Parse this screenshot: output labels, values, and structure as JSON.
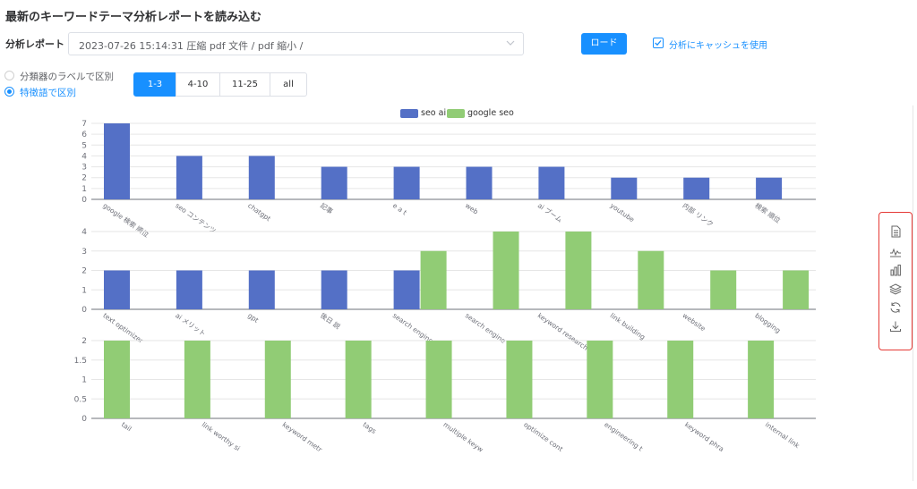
{
  "page": {
    "title": "最新のキーワードテーマ分析レポートを読み込む"
  },
  "report": {
    "label": "分析レポート",
    "selected": "2023-07-26 15:14:31 圧縮 pdf 文件 / pdf 縮小 /"
  },
  "load_button": "ロード",
  "cache": {
    "label": "分析にキャッシュを使用",
    "checked": true
  },
  "radios": [
    {
      "label": "分類器のラベルで区別",
      "checked": false
    },
    {
      "label": "特徴語で区別",
      "checked": true
    }
  ],
  "segments": [
    {
      "label": "1-3",
      "active": true
    },
    {
      "label": "4-10",
      "active": false
    },
    {
      "label": "11-25",
      "active": false
    },
    {
      "label": "all",
      "active": false
    }
  ],
  "toolbox": [
    "document-icon",
    "line-chart-icon",
    "bar-chart-icon",
    "stack-icon",
    "refresh-icon",
    "download-icon"
  ],
  "colors": {
    "accent": "#1890ff",
    "series_blue": "#5470c6",
    "series_green": "#91cc75",
    "toolbox_border": "#e53935"
  },
  "chart_data": [
    {
      "type": "bar",
      "legend": [
        "seo ai",
        "google seo"
      ],
      "categories": [
        "google 検索 順位",
        "seo コンテンツ",
        "chatgpt",
        "記事",
        "e a t",
        "web",
        "ai ブーム",
        "youtube",
        "内部 リンク",
        "検索 順位"
      ],
      "series": [
        {
          "name": "seo ai",
          "values": [
            7,
            4,
            4,
            3,
            3,
            3,
            3,
            2,
            2,
            2
          ]
        },
        {
          "name": "google seo",
          "values": [
            0,
            0,
            0,
            0,
            0,
            0,
            0,
            0,
            0,
            0
          ]
        }
      ],
      "ylim": [
        0,
        7
      ],
      "yticks": [
        0,
        1,
        2,
        3,
        4,
        5,
        6,
        7
      ]
    },
    {
      "type": "bar",
      "categories": [
        "text optimizer",
        "ai メリット",
        "gpt",
        "後日 説",
        "search engine op",
        "search engine",
        "keyword research",
        "link building",
        "website",
        "blogging"
      ],
      "series": [
        {
          "name": "seo ai",
          "values": [
            2,
            2,
            2,
            2,
            2,
            0,
            0,
            0,
            0,
            0
          ]
        },
        {
          "name": "google seo",
          "values": [
            0,
            0,
            0,
            0,
            3,
            4,
            4,
            3,
            2,
            2
          ]
        }
      ],
      "ylim": [
        0,
        4
      ],
      "yticks": [
        0,
        1,
        2,
        3,
        4
      ]
    },
    {
      "type": "bar",
      "categories": [
        "tail",
        "link worthy si",
        "keyword metr",
        "tags",
        "multiple keyw",
        "optimize cont",
        "engineering t",
        "keyword phra",
        "internal link"
      ],
      "series": [
        {
          "name": "google seo",
          "values": [
            2,
            2,
            2,
            2,
            2,
            2,
            2,
            2,
            2
          ]
        }
      ],
      "ylim": [
        0,
        2
      ],
      "yticks": [
        0,
        0.5,
        1,
        1.5,
        2
      ]
    }
  ]
}
